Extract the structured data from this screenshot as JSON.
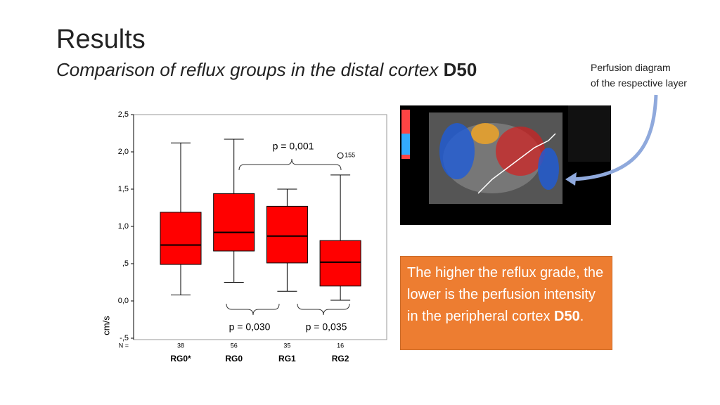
{
  "header": {
    "title": "Results",
    "subtitle": "Comparison of reflux groups in the distal cortex ",
    "subtitle_bold": "D50"
  },
  "image_caption": [
    "Perfusion diagram",
    "of the respective layer"
  ],
  "callout": {
    "text": "The higher the reflux grade, the lower is the perfusion intensity in the peripheral cortex ",
    "bold": "D50",
    "end": "."
  },
  "chart_data": {
    "type": "boxplot",
    "y_label": "cm/s",
    "categories": [
      "RG0*",
      "RG0",
      "RG1",
      "RG2"
    ],
    "n_label": "N =",
    "n": [
      38,
      56,
      35,
      16
    ],
    "color": "#ff0000",
    "series": {
      "min": [
        0.08,
        0.25,
        0.13,
        0.01
      ],
      "q1": [
        0.49,
        0.67,
        0.51,
        0.2
      ],
      "median": [
        0.75,
        0.92,
        0.87,
        0.52
      ],
      "q3": [
        1.19,
        1.44,
        1.27,
        0.81
      ],
      "max": [
        2.12,
        2.17,
        1.5,
        1.69
      ]
    },
    "outliers": [
      {
        "category": "RG2",
        "value": 1.95,
        "label": "155"
      }
    ],
    "ylim": [
      -0.5,
      2.5
    ],
    "yticks": [
      {
        "value": 2.5,
        "label": "2,5"
      },
      {
        "value": 2.0,
        "label": "2,0"
      },
      {
        "value": 1.5,
        "label": "1,5"
      },
      {
        "value": 1.0,
        "label": "1,0"
      },
      {
        "value": 0.5,
        "label": ",5"
      },
      {
        "value": 0.0,
        "label": "0,0"
      },
      {
        "value": -0.5,
        "label": "-,5"
      }
    ],
    "annotations": [
      "p = 0,001",
      "p = 0,030",
      "p = 0,035"
    ]
  }
}
